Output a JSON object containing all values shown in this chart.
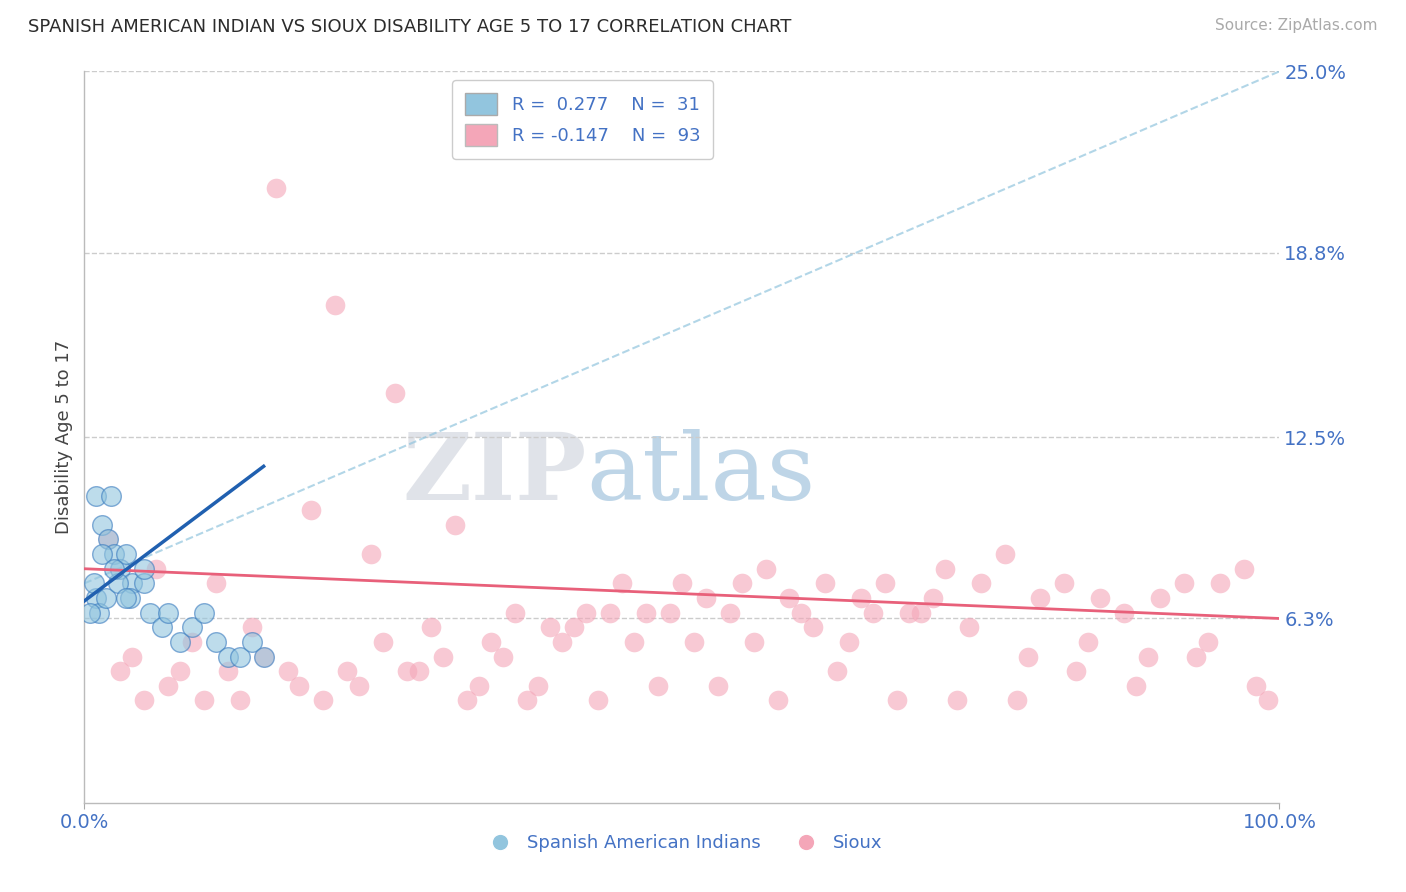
{
  "title": "SPANISH AMERICAN INDIAN VS SIOUX DISABILITY AGE 5 TO 17 CORRELATION CHART",
  "source": "Source: ZipAtlas.com",
  "ylabel": "Disability Age 5 to 17",
  "xlim": [
    0,
    100
  ],
  "ylim": [
    0,
    25
  ],
  "yticks": [
    0,
    6.3,
    12.5,
    18.8,
    25.0
  ],
  "ytick_labels": [
    "",
    "6.3%",
    "12.5%",
    "18.8%",
    "25.0%"
  ],
  "legend_r1": "R =  0.277",
  "legend_n1": "N =  31",
  "legend_r2": "R = -0.147",
  "legend_n2": "N =  93",
  "color_blue": "#92c5de",
  "color_blue_dark": "#3a7bbf",
  "color_pink": "#f4a6b8",
  "color_pink_line": "#e8607a",
  "color_blue_line": "#2060b0",
  "color_dash": "#92c5de",
  "watermark_zip": "#c0c8d8",
  "watermark_atlas": "#92b8d8",
  "blue_x": [
    1.0,
    1.5,
    2.0,
    2.2,
    2.5,
    3.0,
    3.5,
    4.0,
    5.0,
    5.5,
    6.5,
    7.0,
    8.0,
    9.0,
    10.0,
    11.0,
    12.0,
    13.0,
    14.0,
    15.0,
    1.0,
    1.2,
    1.8,
    2.8,
    3.8,
    0.5,
    0.8,
    1.5,
    2.5,
    3.5,
    5.0
  ],
  "blue_y": [
    10.5,
    9.5,
    9.0,
    10.5,
    8.5,
    8.0,
    8.5,
    7.5,
    7.5,
    6.5,
    6.0,
    6.5,
    5.5,
    6.0,
    6.5,
    5.5,
    5.0,
    5.0,
    5.5,
    5.0,
    7.0,
    6.5,
    7.0,
    7.5,
    7.0,
    6.5,
    7.5,
    8.5,
    8.0,
    7.0,
    8.0
  ],
  "pink_x": [
    3.0,
    5.0,
    8.0,
    10.0,
    13.0,
    17.0,
    20.0,
    22.0,
    25.0,
    27.0,
    30.0,
    33.0,
    35.0,
    38.0,
    40.0,
    42.0,
    45.0,
    47.0,
    50.0,
    52.0,
    55.0,
    57.0,
    60.0,
    62.0,
    65.0,
    67.0,
    70.0,
    72.0,
    75.0,
    77.0,
    80.0,
    82.0,
    85.0,
    87.0,
    90.0,
    92.0,
    95.0,
    97.0,
    4.0,
    7.0,
    12.0,
    15.0,
    18.0,
    23.0,
    28.0,
    32.0,
    37.0,
    43.0,
    48.0,
    53.0,
    58.0,
    63.0,
    68.0,
    73.0,
    78.0,
    83.0,
    88.0,
    93.0,
    98.0,
    2.0,
    6.0,
    9.0,
    11.0,
    14.0,
    19.0,
    24.0,
    29.0,
    34.0,
    39.0,
    44.0,
    49.0,
    54.0,
    59.0,
    64.0,
    69.0,
    74.0,
    79.0,
    84.0,
    89.0,
    94.0,
    99.0,
    16.0,
    21.0,
    26.0,
    31.0,
    36.0,
    41.0,
    46.0,
    51.0,
    56.0,
    61.0,
    66.0,
    71.0
  ],
  "pink_y": [
    4.5,
    3.5,
    4.5,
    3.5,
    3.5,
    4.5,
    3.5,
    4.5,
    5.5,
    4.5,
    5.0,
    4.0,
    5.0,
    4.0,
    5.5,
    6.5,
    7.5,
    6.5,
    7.5,
    7.0,
    7.5,
    8.0,
    6.5,
    7.5,
    7.0,
    7.5,
    6.5,
    8.0,
    7.5,
    8.5,
    7.0,
    7.5,
    7.0,
    6.5,
    7.0,
    7.5,
    7.5,
    8.0,
    5.0,
    4.0,
    4.5,
    5.0,
    4.0,
    4.0,
    4.5,
    3.5,
    3.5,
    3.5,
    4.0,
    4.0,
    3.5,
    4.5,
    3.5,
    3.5,
    3.5,
    4.5,
    4.0,
    5.0,
    4.0,
    9.0,
    8.0,
    5.5,
    7.5,
    6.0,
    10.0,
    8.5,
    6.0,
    5.5,
    6.0,
    6.5,
    6.5,
    6.5,
    7.0,
    5.5,
    6.5,
    6.0,
    5.0,
    5.5,
    5.0,
    5.5,
    3.5,
    21.0,
    17.0,
    14.0,
    9.5,
    6.5,
    6.0,
    5.5,
    5.5,
    5.5,
    6.0,
    6.5,
    7.0
  ],
  "blue_line_x0": 0.0,
  "blue_line_y0": 6.9,
  "blue_line_x1": 15.0,
  "blue_line_y1": 11.5,
  "pink_line_x0": 0.0,
  "pink_line_y0": 8.0,
  "pink_line_x1": 100.0,
  "pink_line_y1": 6.3,
  "dash_line_x0": 0.0,
  "dash_line_y0": 7.5,
  "dash_line_x1": 100.0,
  "dash_line_y1": 25.0
}
